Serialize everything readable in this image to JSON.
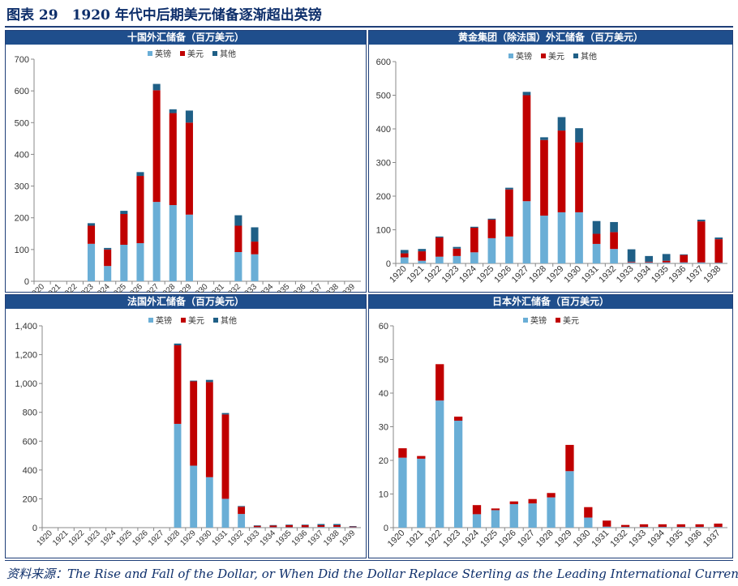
{
  "figure": {
    "title": "图表 29　1920 年代中后期美元储备逐渐超出英镑",
    "source": "资料来源：The Rise and Fall of the Dollar, or When Did the Dollar Replace Sterling as the Leading International Currency"
  },
  "colors": {
    "sterling": "#6aaed6",
    "dollar": "#c00000",
    "other": "#1f5f86"
  },
  "chart_data": [
    {
      "type": "bar",
      "stacked": true,
      "title": "十国外汇储备（百万美元）",
      "legend_position": "top-center",
      "categories": [
        "1920",
        "1921",
        "1922",
        "1923",
        "1924",
        "1925",
        "1926",
        "1927",
        "1928",
        "1929",
        "1930",
        "1931",
        "1932",
        "1933",
        "1934",
        "1935",
        "1936",
        "1937",
        "1938",
        "1939"
      ],
      "ylim": [
        0,
        700
      ],
      "yticks": [
        0,
        100,
        200,
        300,
        400,
        500,
        600,
        700
      ],
      "ytick_labels": [
        "0",
        "100",
        "200",
        "300",
        "400",
        "500",
        "600",
        "700"
      ],
      "series": [
        {
          "name": "英镑",
          "values": [
            0,
            0,
            0,
            118,
            48,
            115,
            120,
            250,
            240,
            210,
            0,
            0,
            92,
            85,
            0,
            0,
            0,
            0,
            0,
            0
          ]
        },
        {
          "name": "美元",
          "values": [
            0,
            0,
            0,
            57,
            52,
            97,
            212,
            352,
            290,
            290,
            0,
            0,
            83,
            40,
            0,
            0,
            0,
            0,
            0,
            0
          ]
        },
        {
          "name": "其他",
          "values": [
            0,
            0,
            0,
            8,
            5,
            10,
            12,
            20,
            12,
            38,
            0,
            0,
            33,
            45,
            0,
            0,
            0,
            0,
            0,
            0
          ]
        }
      ]
    },
    {
      "type": "bar",
      "stacked": true,
      "title": "黄金集团（除法国）外汇储备（百万美元）",
      "legend_position": "top-center",
      "categories": [
        "1920",
        "1921",
        "1922",
        "1923",
        "1924",
        "1925",
        "1926",
        "1927",
        "1928",
        "1929",
        "1930",
        "1931",
        "1932",
        "1933",
        "1934",
        "1935",
        "1936",
        "1937",
        "1938"
      ],
      "ylim": [
        0,
        600
      ],
      "yticks": [
        0,
        100,
        200,
        300,
        400,
        500,
        600
      ],
      "ytick_labels": [
        "0",
        "100",
        "200",
        "300",
        "400",
        "500",
        "600"
      ],
      "series": [
        {
          "name": "英镑",
          "values": [
            18,
            8,
            20,
            22,
            33,
            75,
            80,
            185,
            142,
            152,
            152,
            58,
            43,
            3,
            3,
            3,
            3,
            3,
            2
          ]
        },
        {
          "name": "美元",
          "values": [
            12,
            28,
            57,
            22,
            73,
            55,
            140,
            315,
            225,
            243,
            208,
            30,
            50,
            2,
            2,
            5,
            22,
            122,
            70
          ]
        },
        {
          "name": "其他",
          "values": [
            10,
            7,
            3,
            5,
            3,
            3,
            5,
            10,
            8,
            40,
            42,
            38,
            30,
            37,
            17,
            20,
            2,
            5,
            5
          ]
        }
      ]
    },
    {
      "type": "bar",
      "stacked": true,
      "title": "法国外汇储备（百万美元）",
      "legend_position": "top-center",
      "categories": [
        "1920",
        "1921",
        "1922",
        "1923",
        "1924",
        "1925",
        "1926",
        "1927",
        "1928",
        "1929",
        "1930",
        "1931",
        "1932",
        "1933",
        "1934",
        "1935",
        "1936",
        "1937",
        "1938",
        "1939"
      ],
      "ylim": [
        0,
        1400
      ],
      "yticks": [
        0,
        200,
        400,
        600,
        800,
        1000,
        1200,
        1400
      ],
      "ytick_labels": [
        "0",
        "200",
        "400",
        "600",
        "800",
        "1,000",
        "1,200",
        "1,400"
      ],
      "series": [
        {
          "name": "英镑",
          "values": [
            0,
            0,
            0,
            0,
            0,
            0,
            0,
            0,
            720,
            430,
            350,
            200,
            95,
            3,
            3,
            3,
            3,
            5,
            5,
            3
          ]
        },
        {
          "name": "美元",
          "values": [
            0,
            0,
            0,
            0,
            0,
            0,
            0,
            0,
            545,
            585,
            660,
            585,
            50,
            10,
            12,
            15,
            15,
            12,
            12,
            5
          ]
        },
        {
          "name": "其他",
          "values": [
            0,
            0,
            0,
            0,
            0,
            0,
            0,
            0,
            12,
            5,
            15,
            10,
            5,
            3,
            3,
            3,
            3,
            8,
            8,
            3
          ]
        }
      ]
    },
    {
      "type": "bar",
      "stacked": true,
      "title": "日本外汇储备（百万美元）",
      "legend_position": "top-center",
      "categories": [
        "1920",
        "1921",
        "1922",
        "1923",
        "1924",
        "1925",
        "1926",
        "1927",
        "1928",
        "1929",
        "1930",
        "1931",
        "1932",
        "1933",
        "1934",
        "1935",
        "1936",
        "1937"
      ],
      "ylim": [
        0,
        60
      ],
      "yticks": [
        0,
        10,
        20,
        30,
        40,
        50,
        60
      ],
      "ytick_labels": [
        "0",
        "10",
        "20",
        "30",
        "40",
        "50",
        "60"
      ],
      "series": [
        {
          "name": "英镑",
          "values": [
            20.8,
            20.5,
            37.8,
            31.8,
            4,
            5.2,
            7,
            7.2,
            9,
            16.8,
            3,
            0.3,
            0.2,
            0.2,
            0.2,
            0.2,
            0.2,
            0.2
          ]
        },
        {
          "name": "美元",
          "values": [
            2.8,
            0.8,
            10.8,
            1.2,
            2.7,
            0.5,
            0.8,
            1.3,
            1.3,
            7.8,
            3.1,
            1.8,
            0.6,
            0.8,
            0.8,
            0.8,
            0.8,
            1
          ]
        }
      ]
    }
  ]
}
